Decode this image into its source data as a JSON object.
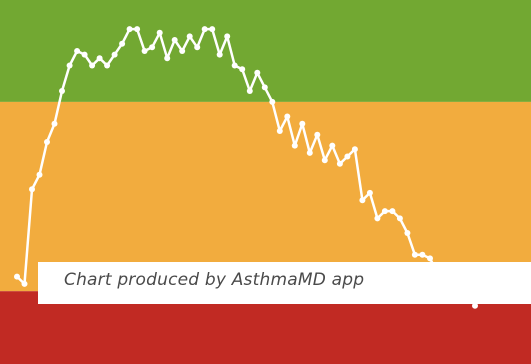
{
  "chart_data": {
    "type": "line",
    "title": "",
    "xlabel": "",
    "ylabel": "",
    "xlim": [
      0,
      64
    ],
    "ylim": [
      0,
      100
    ],
    "zones": [
      {
        "name": "green",
        "from": 72,
        "to": 100,
        "color": "#72a832"
      },
      {
        "name": "yellow",
        "from": 20,
        "to": 72,
        "color": "#f2ac3e"
      },
      {
        "name": "red",
        "from": 0,
        "to": 20,
        "color": "#c12a23"
      }
    ],
    "line_color": "#ffffff",
    "series": [
      {
        "x": [
          0,
          1,
          2,
          3,
          4,
          5,
          6,
          7,
          8,
          9,
          10,
          11,
          12,
          13,
          14,
          15,
          16,
          17,
          18,
          19,
          20,
          21,
          22,
          23,
          24,
          25,
          26,
          27,
          28,
          29,
          30,
          31,
          32,
          33,
          34,
          35,
          36,
          37,
          38,
          39,
          40,
          41,
          42,
          43,
          44,
          45,
          46,
          47,
          48,
          49,
          50,
          51,
          52,
          53,
          54,
          55,
          56,
          57,
          58,
          59,
          60,
          61
        ],
        "y": [
          24,
          22,
          48,
          52,
          61,
          66,
          75,
          82,
          86,
          85,
          82,
          84,
          82,
          85,
          88,
          92,
          92,
          86,
          87,
          91,
          84,
          89,
          86,
          90,
          87,
          92,
          92,
          85,
          90,
          82,
          81,
          75,
          80,
          76,
          72,
          64,
          68,
          60,
          66,
          58,
          63,
          56,
          60,
          55,
          57,
          59,
          45,
          47,
          40,
          42,
          42,
          40,
          36,
          30,
          30,
          29,
          25,
          24,
          22,
          20,
          20,
          16
        ]
      }
    ]
  },
  "caption": {
    "text": "Chart produced by AsthmaMD app"
  }
}
